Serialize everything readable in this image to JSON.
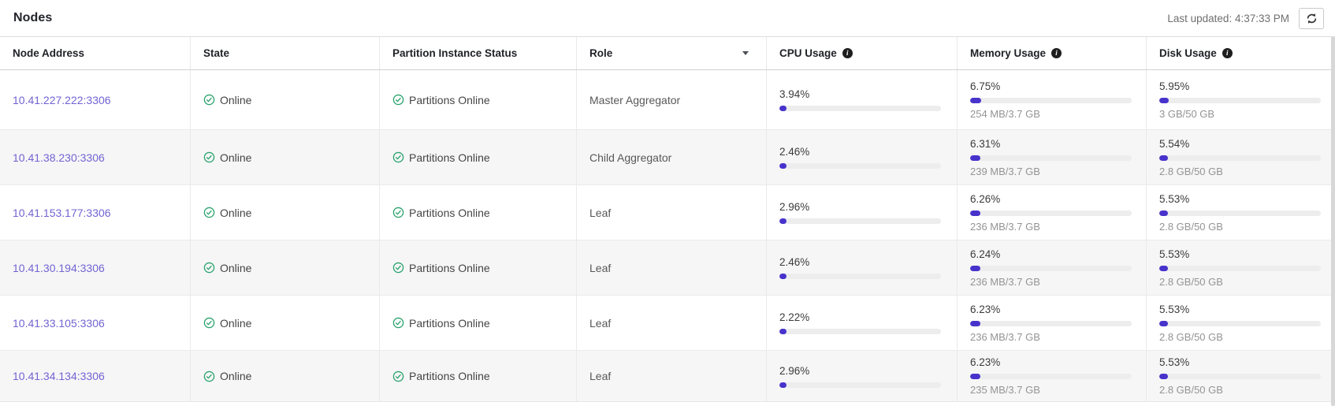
{
  "page": {
    "title": "Nodes",
    "last_updated": "Last updated: 4:37:33 PM"
  },
  "colors": {
    "accent_bar": "#4733cb",
    "link_purple": "#7263d2",
    "success_green": "#2aa26b",
    "zebra_row": "#f6f6f7"
  },
  "icons": {
    "refresh": "refresh-icon",
    "info": "info-icon",
    "sort": "sort-caret-down-icon",
    "status_ok": "check-circle-icon"
  },
  "table": {
    "columns": {
      "node_address": "Node Address",
      "state": "State",
      "partition_status": "Partition Instance Status",
      "role": "Role",
      "cpu": "CPU Usage",
      "memory": "Memory Usage",
      "disk": "Disk Usage"
    },
    "rows": [
      {
        "address": "10.41.227.222:3306",
        "state": "Online",
        "partition_status": "Partitions Online",
        "role": "Master Aggregator",
        "cpu": {
          "pct": "3.94%",
          "detail": ""
        },
        "memory": {
          "pct": "6.75%",
          "detail": "254 MB/3.7 GB"
        },
        "disk": {
          "pct": "5.95%",
          "detail": "3 GB/50 GB"
        }
      },
      {
        "address": "10.41.38.230:3306",
        "state": "Online",
        "partition_status": "Partitions Online",
        "role": "Child Aggregator",
        "cpu": {
          "pct": "2.46%",
          "detail": ""
        },
        "memory": {
          "pct": "6.31%",
          "detail": "239 MB/3.7 GB"
        },
        "disk": {
          "pct": "5.54%",
          "detail": "2.8 GB/50 GB"
        }
      },
      {
        "address": "10.41.153.177:3306",
        "state": "Online",
        "partition_status": "Partitions Online",
        "role": "Leaf",
        "cpu": {
          "pct": "2.96%",
          "detail": ""
        },
        "memory": {
          "pct": "6.26%",
          "detail": "236 MB/3.7 GB"
        },
        "disk": {
          "pct": "5.53%",
          "detail": "2.8 GB/50 GB"
        }
      },
      {
        "address": "10.41.30.194:3306",
        "state": "Online",
        "partition_status": "Partitions Online",
        "role": "Leaf",
        "cpu": {
          "pct": "2.46%",
          "detail": ""
        },
        "memory": {
          "pct": "6.24%",
          "detail": "236 MB/3.7 GB"
        },
        "disk": {
          "pct": "5.53%",
          "detail": "2.8 GB/50 GB"
        }
      },
      {
        "address": "10.41.33.105:3306",
        "state": "Online",
        "partition_status": "Partitions Online",
        "role": "Leaf",
        "cpu": {
          "pct": "2.22%",
          "detail": ""
        },
        "memory": {
          "pct": "6.23%",
          "detail": "236 MB/3.7 GB"
        },
        "disk": {
          "pct": "5.53%",
          "detail": "2.8 GB/50 GB"
        }
      },
      {
        "address": "10.41.34.134:3306",
        "state": "Online",
        "partition_status": "Partitions Online",
        "role": "Leaf",
        "cpu": {
          "pct": "2.96%",
          "detail": ""
        },
        "memory": {
          "pct": "6.23%",
          "detail": "235 MB/3.7 GB"
        },
        "disk": {
          "pct": "5.53%",
          "detail": "2.8 GB/50 GB"
        }
      }
    ]
  }
}
